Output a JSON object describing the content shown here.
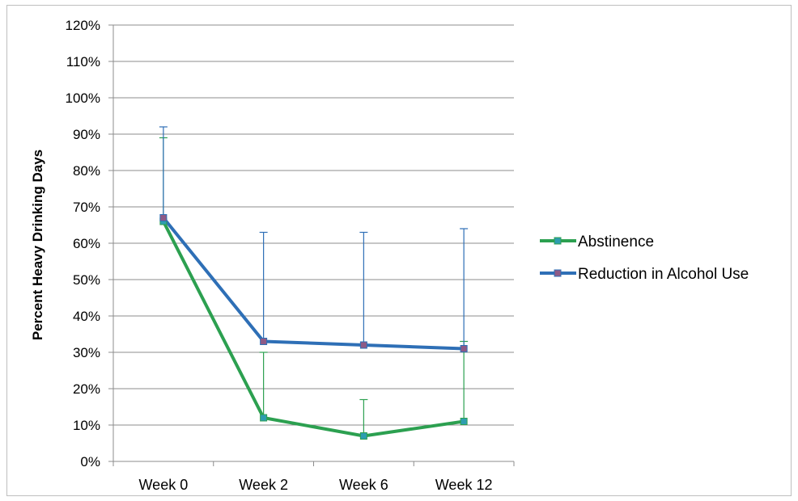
{
  "chart_data": {
    "type": "line",
    "title": "",
    "xlabel": "",
    "ylabel": "Percent Heavy Drinking Days",
    "categories": [
      "Week 0",
      "Week 2",
      "Week 6",
      "Week 12"
    ],
    "ylim": [
      0,
      120
    ],
    "yticks": [
      0,
      10,
      20,
      30,
      40,
      50,
      60,
      70,
      80,
      90,
      100,
      110,
      120
    ],
    "ytick_labels": [
      "0%",
      "10%",
      "20%",
      "30%",
      "40%",
      "50%",
      "60%",
      "70%",
      "80%",
      "90%",
      "100%",
      "110%",
      "120%"
    ],
    "grid": true,
    "legend_position": "right",
    "series": [
      {
        "name": "Abstinence",
        "color": "#2ca050",
        "marker_color": "#2e9db0",
        "values": [
          66,
          12,
          7,
          11
        ],
        "error_upper": [
          89,
          30,
          17,
          33
        ],
        "error_lower": [
          66,
          12,
          7,
          11
        ]
      },
      {
        "name": "Reduction in Alcohol Use",
        "color": "#2e6fb6",
        "marker_color": "#8e5a86",
        "values": [
          67,
          33,
          32,
          31
        ],
        "error_upper": [
          92,
          63,
          63,
          64
        ],
        "error_lower": [
          67,
          33,
          32,
          31
        ]
      }
    ]
  }
}
